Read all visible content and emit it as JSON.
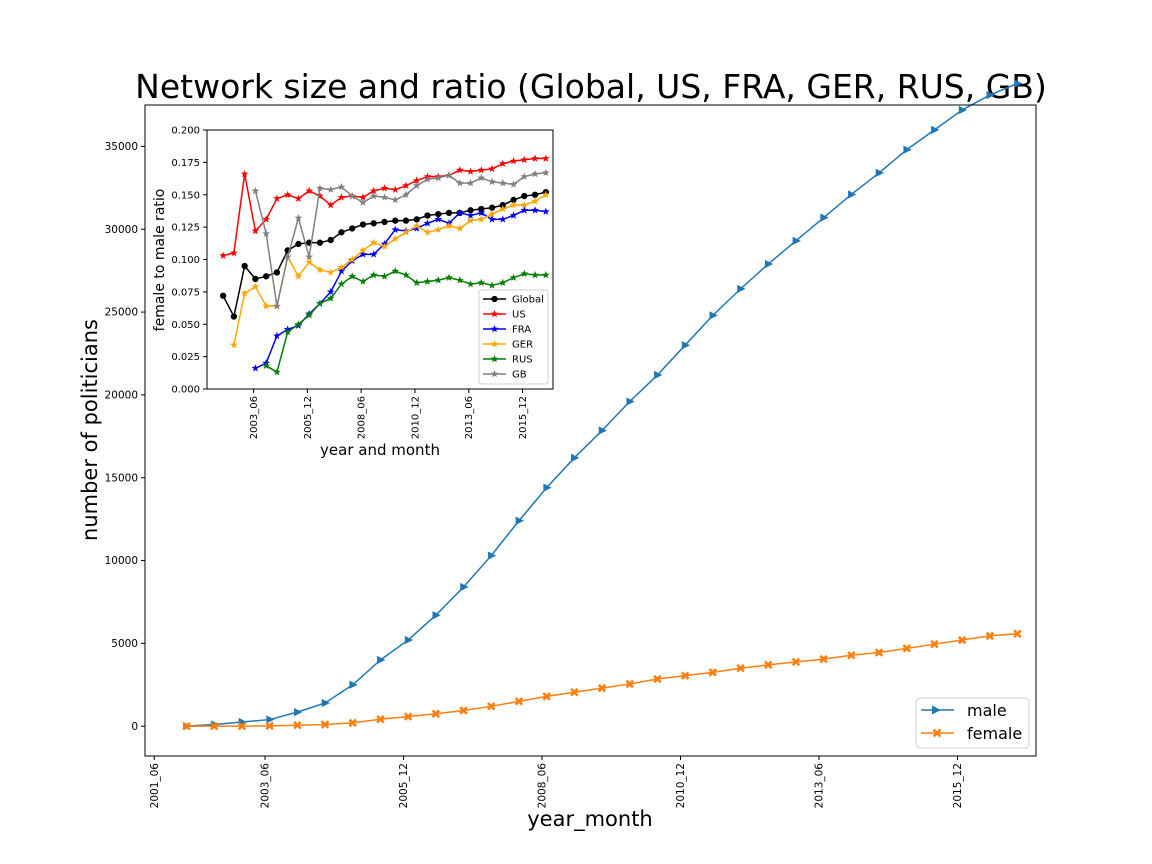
{
  "chart_data": [
    {
      "type": "line",
      "title": "Network size and ratio (Global, US, FRA, GER, RUS, GB)",
      "xlabel": "year_month",
      "ylabel": "number of politicians",
      "x_tick_labels": [
        "2001_06",
        "2003_06",
        "2005_12",
        "2008_06",
        "2010_12",
        "2013_06",
        "2015_12"
      ],
      "x_ticks": [
        "2001-06",
        "2003-06",
        "2005-12",
        "2008-06",
        "2010-12",
        "2013-06",
        "2015-12"
      ],
      "xlim": [
        "2001-04",
        "2017-05"
      ],
      "y_ticks": [
        0,
        5000,
        10000,
        15000,
        20000,
        25000,
        30000,
        35000
      ],
      "ylim": [
        -1800,
        37500
      ],
      "grid": false,
      "legend_position": "lower-right",
      "x": [
        "2002-01",
        "2002-07",
        "2003-01",
        "2003-07",
        "2004-01",
        "2004-07",
        "2005-01",
        "2005-07",
        "2006-01",
        "2006-07",
        "2007-01",
        "2007-07",
        "2008-01",
        "2008-07",
        "2009-01",
        "2009-07",
        "2010-01",
        "2010-07",
        "2011-01",
        "2011-07",
        "2012-01",
        "2012-07",
        "2013-01",
        "2013-07",
        "2014-01",
        "2014-07",
        "2015-01",
        "2015-07",
        "2016-01",
        "2016-07",
        "2017-01"
      ],
      "series": [
        {
          "name": "male",
          "color": "#1f77b4",
          "marker": "triangle-right",
          "values": [
            0,
            100,
            250,
            400,
            850,
            1400,
            2500,
            4000,
            5200,
            6700,
            8400,
            10300,
            12400,
            14400,
            16200,
            17850,
            19600,
            21200,
            23000,
            24800,
            26400,
            27900,
            29300,
            30700,
            32100,
            33400,
            34800,
            36000,
            37200,
            38100,
            38800
          ]
        },
        {
          "name": "female",
          "color": "#ff7f0e",
          "marker": "x",
          "values": [
            0,
            0,
            0,
            20,
            60,
            100,
            200,
            420,
            580,
            750,
            950,
            1200,
            1500,
            1800,
            2050,
            2300,
            2550,
            2850,
            3050,
            3250,
            3500,
            3700,
            3880,
            4050,
            4280,
            4450,
            4700,
            4950,
            5200,
            5450,
            5580
          ]
        }
      ]
    },
    {
      "type": "line",
      "title": "",
      "xlabel": "year and month",
      "ylabel": "female to male ratio",
      "x_tick_labels": [
        "2003_06",
        "2005_12",
        "2008_06",
        "2010_12",
        "2013_06",
        "2015_12"
      ],
      "x_ticks": [
        "2003-06",
        "2005-12",
        "2008-06",
        "2010-12",
        "2013-06",
        "2015-12"
      ],
      "xlim": [
        "2001-04",
        "2017-05"
      ],
      "y_ticks": [
        0.0,
        0.025,
        0.05,
        0.075,
        0.1,
        0.125,
        0.15,
        0.175,
        0.2
      ],
      "y_tick_labels": [
        "0.000",
        "0.025",
        "0.050",
        "0.075",
        "0.100",
        "0.125",
        "0.150",
        "0.175",
        "0.200"
      ],
      "ylim": [
        0,
        0.2
      ],
      "grid": false,
      "legend_position": "lower-right",
      "x": [
        "2002-01",
        "2002-07",
        "2003-01",
        "2003-07",
        "2004-01",
        "2004-07",
        "2005-01",
        "2005-07",
        "2006-01",
        "2006-07",
        "2007-01",
        "2007-07",
        "2008-01",
        "2008-07",
        "2009-01",
        "2009-07",
        "2010-01",
        "2010-07",
        "2011-01",
        "2011-07",
        "2012-01",
        "2012-07",
        "2013-01",
        "2013-07",
        "2014-01",
        "2014-07",
        "2015-01",
        "2015-07",
        "2016-01",
        "2016-07",
        "2017-01"
      ],
      "series": [
        {
          "name": "Global",
          "color": "#000000",
          "marker": "circle",
          "values": [
            0.072,
            0.056,
            0.095,
            0.085,
            0.087,
            0.09,
            0.107,
            0.112,
            0.113,
            0.113,
            0.115,
            0.121,
            0.124,
            0.127,
            0.128,
            0.129,
            0.13,
            0.13,
            0.131,
            0.134,
            0.135,
            0.136,
            0.136,
            0.138,
            0.139,
            0.14,
            0.142,
            0.146,
            0.149,
            0.15,
            0.152
          ]
        },
        {
          "name": "US",
          "color": "#ff0000",
          "marker": "star",
          "values": [
            0.103,
            0.105,
            0.166,
            0.122,
            0.131,
            0.147,
            0.15,
            0.147,
            0.153,
            0.149,
            0.142,
            0.148,
            0.149,
            0.148,
            0.153,
            0.155,
            0.154,
            0.157,
            0.161,
            0.164,
            0.164,
            0.165,
            0.169,
            0.168,
            0.169,
            0.17,
            0.174,
            0.176,
            0.177,
            0.178,
            0.178
          ]
        },
        {
          "name": "FRA",
          "color": "#0000ff",
          "marker": "star",
          "values": [
            null,
            null,
            null,
            0.016,
            0.02,
            0.041,
            0.046,
            0.049,
            0.058,
            0.066,
            0.075,
            0.091,
            0.099,
            0.104,
            0.104,
            0.112,
            0.123,
            0.122,
            0.124,
            0.128,
            0.131,
            0.128,
            0.136,
            0.134,
            0.136,
            0.131,
            0.131,
            0.134,
            0.138,
            0.138,
            0.137
          ]
        },
        {
          "name": "GER",
          "color": "#ffa500",
          "marker": "star",
          "values": [
            null,
            0.034,
            0.074,
            0.079,
            0.064,
            0.064,
            0.102,
            0.087,
            0.098,
            0.092,
            0.09,
            0.094,
            0.1,
            0.107,
            0.113,
            0.11,
            0.116,
            0.121,
            0.126,
            0.121,
            0.123,
            0.126,
            0.124,
            0.13,
            0.131,
            0.135,
            0.139,
            0.142,
            0.142,
            0.145,
            0.15
          ]
        },
        {
          "name": "RUS",
          "color": "#008000",
          "marker": "star",
          "values": [
            null,
            null,
            null,
            null,
            0.018,
            0.013,
            0.044,
            0.05,
            0.057,
            0.066,
            0.07,
            0.081,
            0.087,
            0.083,
            0.088,
            0.087,
            0.091,
            0.088,
            0.082,
            0.083,
            0.084,
            0.086,
            0.084,
            0.081,
            0.082,
            0.08,
            0.082,
            0.086,
            0.089,
            0.088,
            0.088
          ]
        },
        {
          "name": "GB",
          "color": "#808080",
          "marker": "star",
          "values": [
            null,
            null,
            null,
            0.153,
            0.12,
            0.064,
            0.102,
            0.132,
            0.102,
            0.155,
            0.154,
            0.156,
            0.149,
            0.144,
            0.149,
            0.148,
            0.146,
            0.15,
            0.157,
            0.162,
            0.163,
            0.165,
            0.159,
            0.159,
            0.163,
            0.16,
            0.159,
            0.158,
            0.164,
            0.166,
            0.167
          ]
        }
      ]
    }
  ]
}
